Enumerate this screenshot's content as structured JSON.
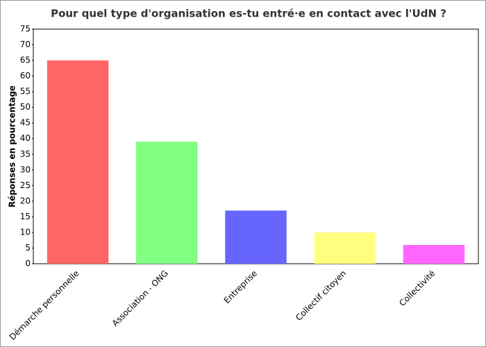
{
  "chart_data": {
    "type": "bar",
    "title": "Pour quel type d'organisation es-tu entré·e en contact avec l'UdN ?",
    "y_label": "Réponses en pourcentage",
    "categories": [
      "Démarche personnelle",
      "Association - ONG",
      "Entreprise",
      "Collectif citoyen",
      "Collectivité"
    ],
    "values": [
      65,
      39,
      17,
      10,
      6
    ],
    "colors": [
      "#ff6666",
      "#80ff80",
      "#6666ff",
      "#ffff80",
      "#ff66ff"
    ],
    "ylim": [
      0,
      75
    ],
    "yticks": [
      0,
      5,
      10,
      15,
      20,
      25,
      30,
      35,
      40,
      45,
      50,
      55,
      60,
      65,
      70,
      75
    ],
    "grid": false
  }
}
